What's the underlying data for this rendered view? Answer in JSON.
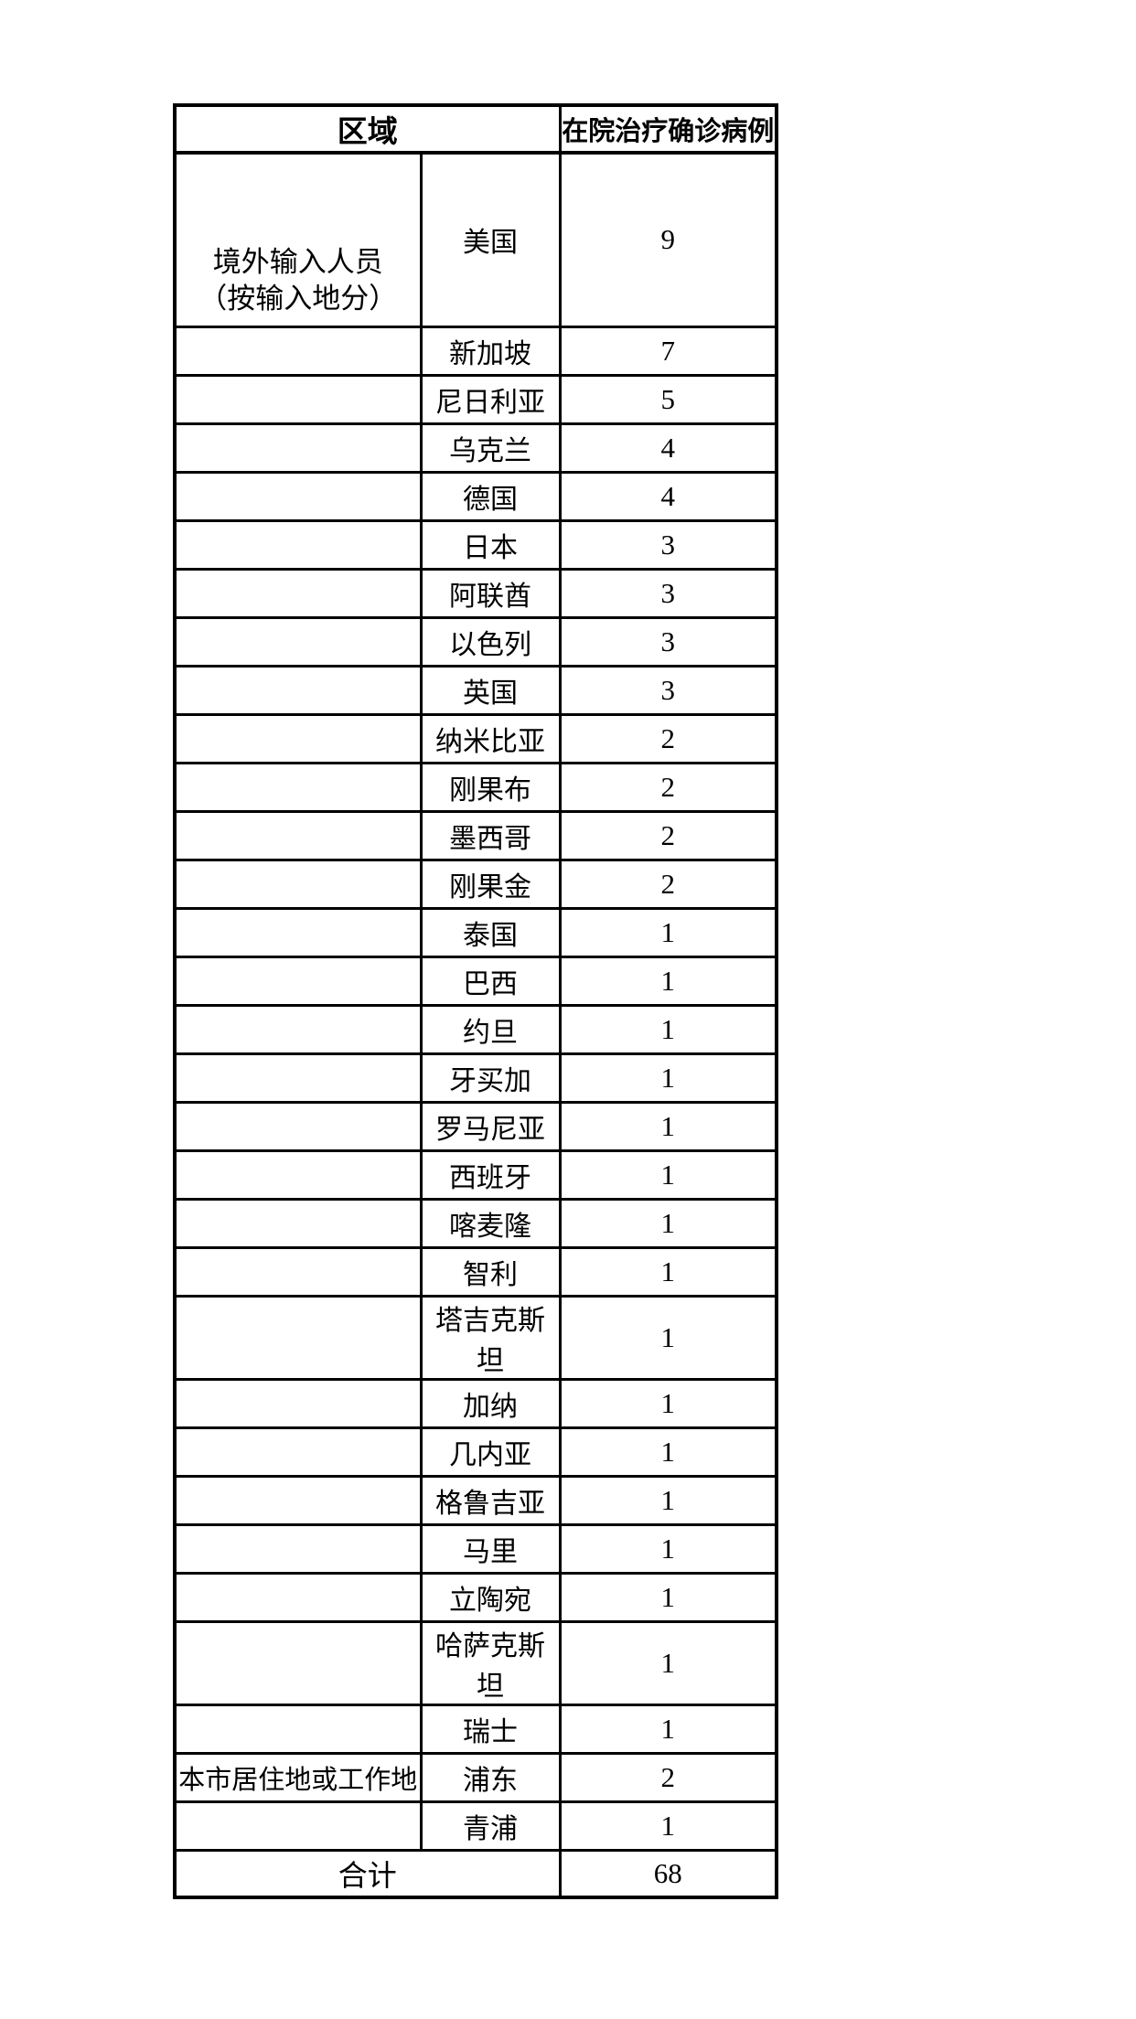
{
  "page": {
    "background_color": "#ffffff",
    "text_color": "#000000",
    "border_color": "#000000"
  },
  "table": {
    "header": {
      "region_label": "区域",
      "cases_label": "在院治疗确诊病例"
    },
    "import_group": {
      "label_line1": "境外输入人员",
      "label_line2": "（按输入地分）",
      "rows": [
        {
          "place": "美国",
          "cases": "9"
        },
        {
          "place": "新加坡",
          "cases": "7"
        },
        {
          "place": "尼日利亚",
          "cases": "5"
        },
        {
          "place": "乌克兰",
          "cases": "4"
        },
        {
          "place": "德国",
          "cases": "4"
        },
        {
          "place": "日本",
          "cases": "3"
        },
        {
          "place": "阿联酋",
          "cases": "3"
        },
        {
          "place": "以色列",
          "cases": "3"
        },
        {
          "place": "英国",
          "cases": "3"
        },
        {
          "place": "纳米比亚",
          "cases": "2"
        },
        {
          "place": "刚果布",
          "cases": "2"
        },
        {
          "place": "墨西哥",
          "cases": "2"
        },
        {
          "place": "刚果金",
          "cases": "2"
        },
        {
          "place": "泰国",
          "cases": "1"
        },
        {
          "place": "巴西",
          "cases": "1"
        },
        {
          "place": "约旦",
          "cases": "1"
        },
        {
          "place": "牙买加",
          "cases": "1"
        },
        {
          "place": "罗马尼亚",
          "cases": "1"
        },
        {
          "place": "西班牙",
          "cases": "1"
        },
        {
          "place": "喀麦隆",
          "cases": "1"
        },
        {
          "place": "智利",
          "cases": "1"
        },
        {
          "place": "塔吉克斯坦",
          "cases": "1"
        },
        {
          "place": "加纳",
          "cases": "1"
        },
        {
          "place": "几内亚",
          "cases": "1"
        },
        {
          "place": "格鲁吉亚",
          "cases": "1"
        },
        {
          "place": "马里",
          "cases": "1"
        },
        {
          "place": "立陶宛",
          "cases": "1"
        },
        {
          "place": "哈萨克斯坦",
          "cases": "1"
        },
        {
          "place": "瑞士",
          "cases": "1"
        }
      ]
    },
    "local_group": {
      "label": "本市居住地或工作地",
      "rows": [
        {
          "place": "浦东",
          "cases": "2"
        },
        {
          "place": "青浦",
          "cases": "1"
        }
      ]
    },
    "total": {
      "label": "合计",
      "cases": "68"
    }
  }
}
